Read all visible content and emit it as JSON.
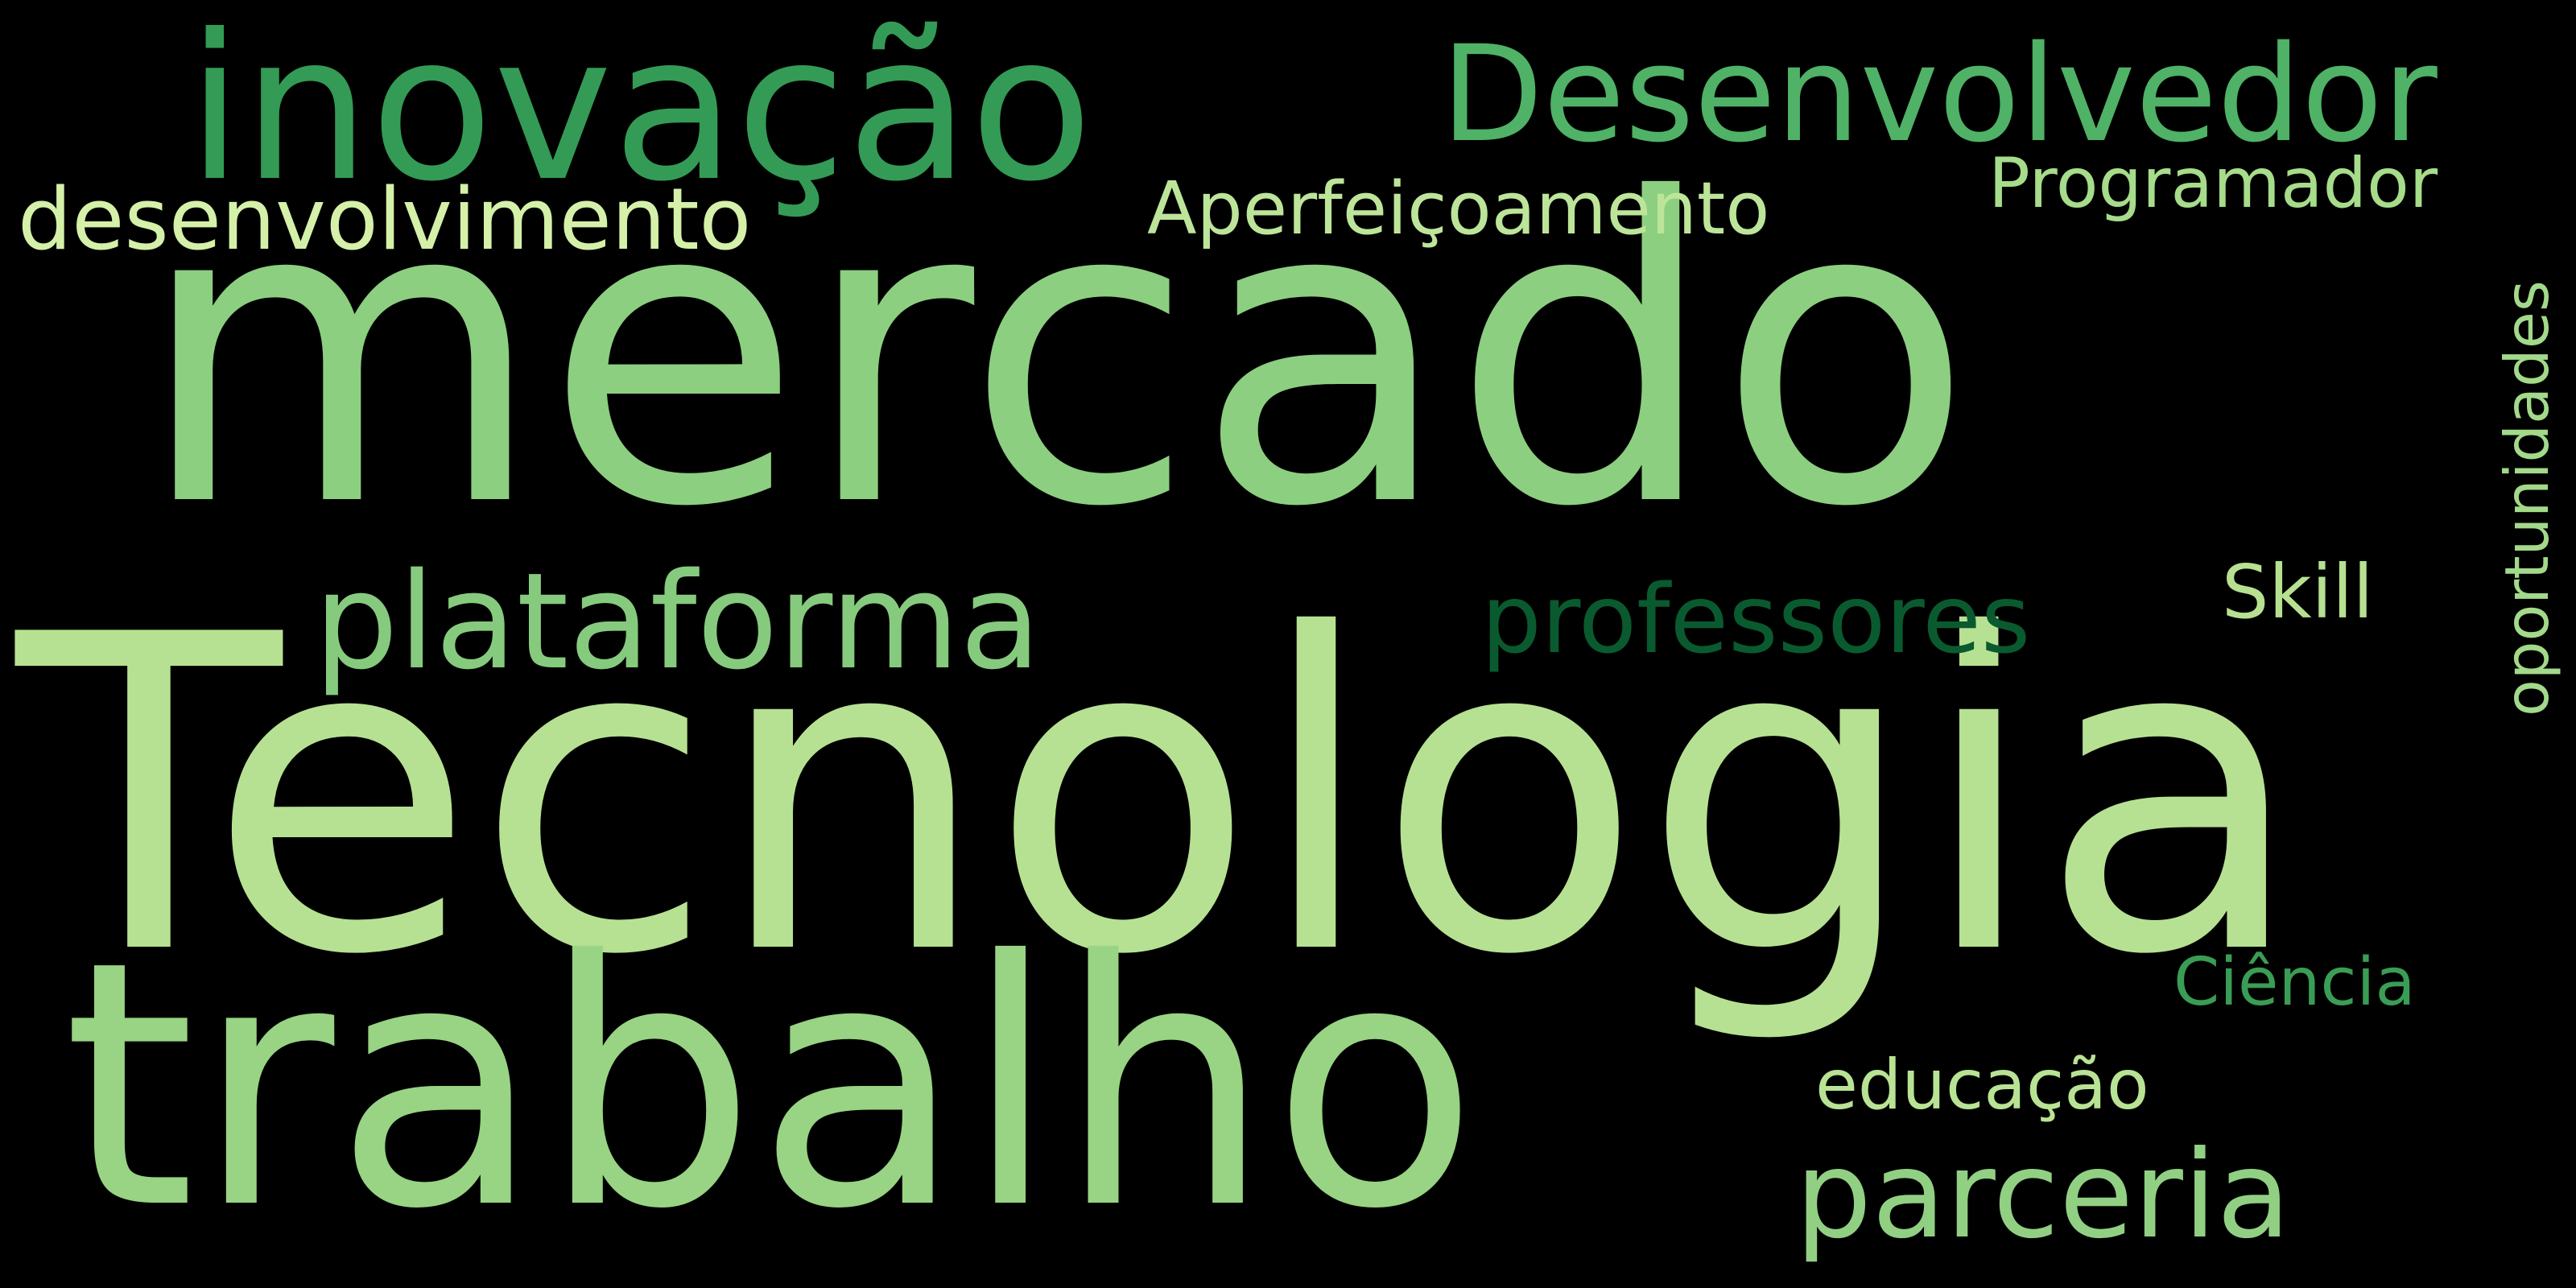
{
  "words": [
    {
      "id": "mercado",
      "text": "mercado",
      "color": "#8ccf80"
    },
    {
      "id": "tecnologia",
      "text": "Tecnologia",
      "color": "#b7e192"
    },
    {
      "id": "trabalho",
      "text": "trabalho",
      "color": "#98d483"
    },
    {
      "id": "inovacao",
      "text": "inovação",
      "color": "#339b55"
    },
    {
      "id": "desenvolvedor",
      "text": "Desenvolvedor",
      "color": "#4fb266"
    },
    {
      "id": "desenvolvimento",
      "text": "desenvolvimento",
      "color": "#d5f0a8"
    },
    {
      "id": "aperfeicoamento",
      "text": "Aperfeiçoamento",
      "color": "#bde59a"
    },
    {
      "id": "programador",
      "text": "Programador",
      "color": "#a6dc8a"
    },
    {
      "id": "plataforma",
      "text": "plataforma",
      "color": "#86ca7e"
    },
    {
      "id": "professores",
      "text": "professores",
      "color": "#0a5a2f"
    },
    {
      "id": "skill",
      "text": "Skill",
      "color": "#b7e191"
    },
    {
      "id": "oportunidades",
      "text": "oportunidades",
      "color": "#a3d98a"
    },
    {
      "id": "ciencia",
      "text": "Ciência",
      "color": "#3a9d55"
    },
    {
      "id": "educacao",
      "text": "educação",
      "color": "#b9e394"
    },
    {
      "id": "parceria",
      "text": "parceria",
      "color": "#91d083"
    }
  ]
}
